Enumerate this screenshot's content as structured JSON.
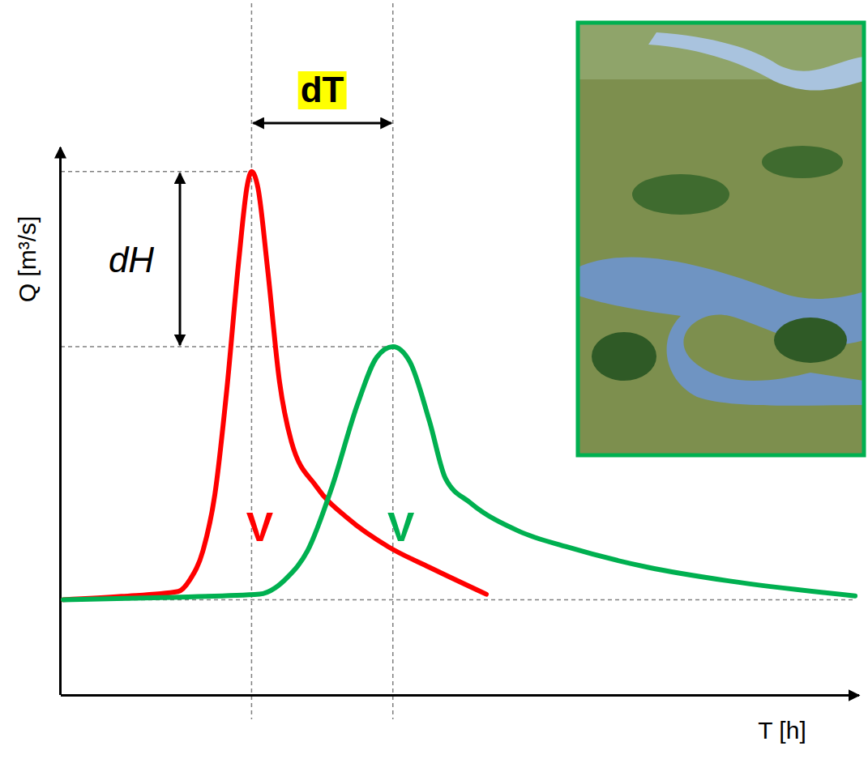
{
  "chart_data": {
    "type": "line",
    "x_label": "T [h]",
    "y_label": "Q [m³/s]",
    "xlim": [
      0,
      100
    ],
    "ylim": [
      0,
      100
    ],
    "xticks": [],
    "yticks": [],
    "tick_labels": false,
    "grid": false,
    "series": [
      {
        "color": "#ff0000",
        "line_style": "solid",
        "x": [
          0.3,
          7.6,
          14.7,
          16.2,
          17.8,
          19.3,
          20.8,
          22.3,
          23.4,
          23.9,
          24.7,
          25.9,
          27.4,
          28.9,
          32.0,
          36.0,
          41.1,
          46.2,
          53.3
        ],
        "values": [
          17.4,
          18.0,
          18.9,
          21.1,
          26.3,
          36.6,
          55.8,
          79.4,
          93.4,
          95.6,
          92.6,
          77.9,
          57.2,
          46.2,
          38.1,
          32.2,
          27.0,
          23.3,
          18.4
        ]
      },
      {
        "color": "#00b050",
        "line_style": "solid",
        "x": [
          0.3,
          12.7,
          24.9,
          26.9,
          28.4,
          30.9,
          34.0,
          37.1,
          39.6,
          41.6,
          43.7,
          46.2,
          48.2,
          51.3,
          57.4,
          63.5,
          73.6,
          83.8,
          99.5
        ],
        "values": [
          17.4,
          17.8,
          18.4,
          19.6,
          21.5,
          26.3,
          38.1,
          52.8,
          61.7,
          63.6,
          60.9,
          49.9,
          39.5,
          35.1,
          29.9,
          27.0,
          23.3,
          20.8,
          18.1
        ]
      }
    ],
    "annotations": [
      {
        "text": "dT"
      },
      {
        "text": "dH"
      },
      {
        "text": "V",
        "color": "#ff0000"
      },
      {
        "text": "V",
        "color": "#00b050"
      }
    ]
  }
}
